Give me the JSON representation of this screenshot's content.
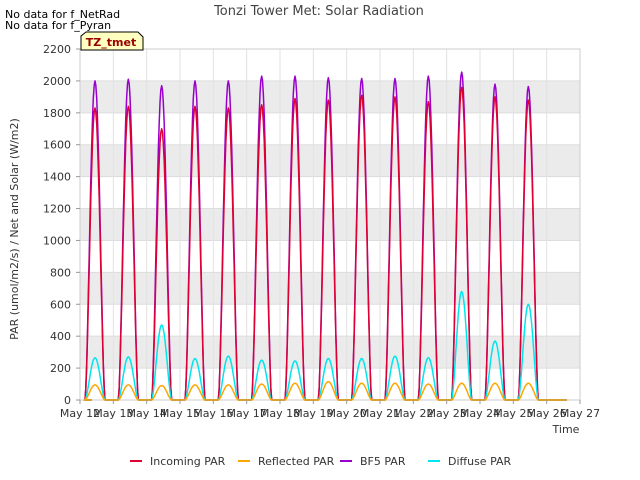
{
  "notes": [
    "No data for f_NetRad",
    "No data for f_Pyran"
  ],
  "site_tag": "TZ_tmet",
  "colors": {
    "incoming": "#dd0033",
    "reflected": "#ffa500",
    "bf5": "#9900cc",
    "diffuse": "#00e5ee",
    "band": "#ebebeb",
    "axis": "#cccccc",
    "tag_fill": "#ffffc0",
    "tag_text": "#990000"
  },
  "chart_data": {
    "type": "line",
    "title": "Tonzi Tower Met: Solar Radiation",
    "xlabel": "Time",
    "ylabel": "PAR (umol/m2/s) / Net and Solar (W/m2)",
    "ylim": [
      0,
      2200
    ],
    "yticks": [
      0,
      200,
      400,
      600,
      800,
      1000,
      1200,
      1400,
      1600,
      1800,
      2000,
      2200
    ],
    "xlim": [
      12,
      27
    ],
    "xticks": [
      12,
      13,
      14,
      15,
      16,
      17,
      18,
      19,
      20,
      21,
      22,
      23,
      24,
      25,
      26,
      27
    ],
    "xtick_labels": [
      "May 12",
      "May 13",
      "May 14",
      "May 15",
      "May 16",
      "May 17",
      "May 18",
      "May 19",
      "May 20",
      "May 21",
      "May 22",
      "May 23",
      "May 24",
      "May 25",
      "May 26",
      "May 27"
    ],
    "day_peak_offset": 0.45,
    "days": [
      12,
      13,
      14,
      15,
      16,
      17,
      18,
      19,
      20,
      21,
      22,
      23,
      24,
      25
    ],
    "series": [
      {
        "name": "Incoming PAR",
        "color_key": "incoming",
        "peaks": [
          1830,
          1840,
          1700,
          1840,
          1830,
          1850,
          1890,
          1880,
          1910,
          1900,
          1870,
          1960,
          1900,
          1880
        ]
      },
      {
        "name": "Reflected PAR",
        "color_key": "reflected",
        "peaks": [
          95,
          95,
          90,
          95,
          95,
          100,
          105,
          115,
          105,
          105,
          100,
          105,
          105,
          105
        ]
      },
      {
        "name": "BF5 PAR",
        "color_key": "bf5",
        "peaks": [
          2000,
          2010,
          1970,
          2000,
          2000,
          2030,
          2030,
          2020,
          2015,
          2015,
          2030,
          2055,
          1980,
          1965
        ]
      },
      {
        "name": "Diffuse PAR",
        "color_key": "diffuse",
        "peaks": [
          265,
          270,
          470,
          260,
          275,
          250,
          245,
          260,
          260,
          275,
          265,
          680,
          370,
          600
        ]
      }
    ]
  }
}
